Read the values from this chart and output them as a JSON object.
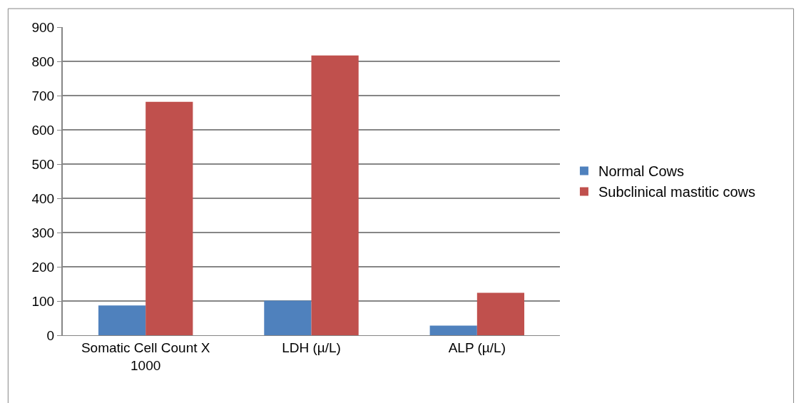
{
  "chart_data": {
    "type": "bar",
    "categories": [
      "Somatic Cell Count X 1000",
      "LDH (µ/L)",
      "ALP (µ/L)"
    ],
    "series": [
      {
        "name": "Normal Cows",
        "color": "#4f81bd",
        "values": [
          87,
          101,
          28
        ]
      },
      {
        "name": "Subclinical mastitic cows",
        "color": "#c0504d",
        "values": [
          682,
          817,
          124
        ]
      }
    ],
    "ylim": [
      0,
      900
    ],
    "yticks": [
      0,
      100,
      200,
      300,
      400,
      500,
      600,
      700,
      800,
      900
    ],
    "grid": "y",
    "legend": "right"
  }
}
